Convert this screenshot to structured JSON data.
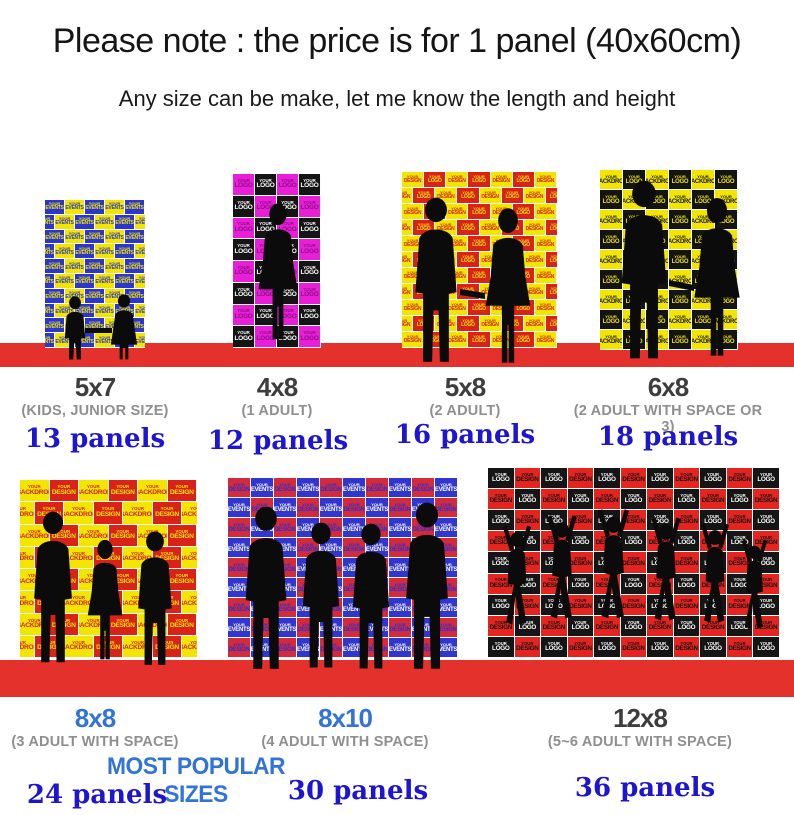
{
  "header": {
    "title": "Please note : the price is for 1 panel (40x60cm)",
    "subtitle": "Any size can be make, let me know the length and height"
  },
  "popular_note": "MOST POPULAR SIZES",
  "sizes": [
    {
      "label": "5x7",
      "desc": "(KIDS, JUNIOR SIZE)",
      "panels": "13 panels"
    },
    {
      "label": "4x8",
      "desc": "(1 ADULT)",
      "panels": "12 panels"
    },
    {
      "label": "5x8",
      "desc": "(2 ADULT)",
      "panels": "16 panels"
    },
    {
      "label": "6x8",
      "desc": "(2 ADULT WITH SPACE OR 3)",
      "panels": "18 panels"
    },
    {
      "label": "8x8",
      "desc": "(3 ADULT WITH SPACE)",
      "panels": "24 panels"
    },
    {
      "label": "8x10",
      "desc": "(4 ADULT WITH SPACE)",
      "panels": "30 panels"
    },
    {
      "label": "12x8",
      "desc": "(5~6 ADULT WITH SPACE)",
      "panels": "36 panels"
    }
  ],
  "colors": {
    "carpet_red": "#e5312b",
    "panels_blue": "#1d15cf",
    "size_dark": "#3d3d3d",
    "size_blue": "#3273d8",
    "subtitle_gray": "#8f8f8f"
  },
  "backdrops": {
    "b5x7": {
      "cols": 5,
      "rows": 10,
      "offset": true,
      "tiles": [
        {
          "bg": "#2b36cf",
          "fg": "#f2e500",
          "w1": "YOUR",
          "w2": "EVENTS"
        },
        {
          "bg": "#f2e500",
          "fg": "#2b36cf",
          "w1": "YOUR",
          "w2": "EVENTS"
        }
      ]
    },
    "b4x8": {
      "cols": 4,
      "rows": 8,
      "offset": false,
      "tiles": [
        {
          "bg": "#e81ed8",
          "fg": "#8d0f84",
          "w1": "YOUR",
          "w2": "LOGO"
        },
        {
          "bg": "#141414",
          "fg": "#ffffff",
          "w1": "YOUR",
          "w2": "LOGO"
        }
      ]
    },
    "b5x8": {
      "cols": 7,
      "rows": 11,
      "offset": true,
      "tiles": [
        {
          "bg": "#f2e500",
          "fg": "#d92218",
          "w1": "YOUR",
          "w2": "DESIGN"
        },
        {
          "bg": "#d92218",
          "fg": "#f2e500",
          "w1": "YOUR",
          "w2": "LOGO"
        }
      ]
    },
    "b6x8": {
      "cols": 6,
      "rows": 9,
      "offset": false,
      "tiles": [
        {
          "bg": "#f2e500",
          "fg": "#141414",
          "w1": "YOUR",
          "w2": "BACKDROP"
        },
        {
          "bg": "#141414",
          "fg": "#f2e500",
          "w1": "YOUR",
          "w2": "LOGO"
        }
      ]
    },
    "b8x8": {
      "cols": 6,
      "rows": 8,
      "offset": true,
      "tiles": [
        {
          "bg": "#f2e500",
          "fg": "#d92218",
          "w1": "YOUR",
          "w2": "BACKDROP"
        },
        {
          "bg": "#d92218",
          "fg": "#f2e500",
          "w1": "YOUR",
          "w2": "DESIGN"
        }
      ]
    },
    "b8x10": {
      "cols": 10,
      "rows": 9,
      "offset": false,
      "tiles": [
        {
          "bg": "#d32b3c",
          "fg": "#2a2ed0",
          "w1": "YOUR",
          "w2": "DESIGN"
        },
        {
          "bg": "#3136ce",
          "fg": "#ffffff",
          "w1": "YOUR",
          "w2": "EVENTS"
        }
      ]
    },
    "b12x8": {
      "cols": 11,
      "rows": 9,
      "offset": false,
      "tiles": [
        {
          "bg": "#151515",
          "fg": "#ffffff",
          "w1": "YOUR",
          "w2": "LOGO"
        },
        {
          "bg": "#e6241f",
          "fg": "#141414",
          "w1": "YOUR",
          "w2": "DESIGN"
        }
      ]
    }
  }
}
